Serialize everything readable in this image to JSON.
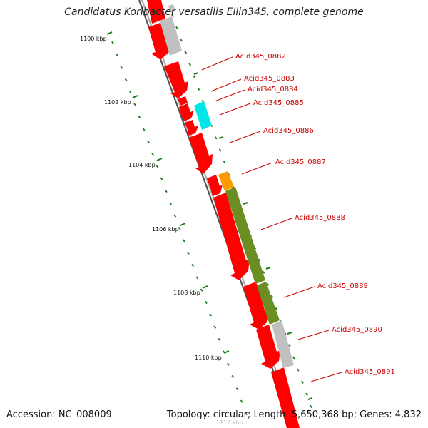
{
  "title": "Candidatus Koribacter versatilis Ellin345, complete genome",
  "footer": {
    "accession": "Accession: NC_008009",
    "summary": "Topology: circular; Length: 5,650,368 bp; Genes: 4,832"
  },
  "colors": {
    "gene_default": "#ff0000",
    "gene_gray": "#c0c0c0",
    "gene_cyan": "#00e5e5",
    "gene_orange": "#ff9900",
    "gene_olive": "#6b8e23",
    "label": "#cc0000",
    "tick": "#1a7a1a",
    "backbone": "#888888"
  },
  "ticks": [
    {
      "label": "1100 kbp"
    },
    {
      "label": "1102 kbp"
    },
    {
      "label": "1104 kbp"
    },
    {
      "label": "1106 kbp"
    },
    {
      "label": "1108 kbp"
    },
    {
      "label": "1110 kbp"
    },
    {
      "label": "1112 kbp"
    }
  ],
  "genes": [
    {
      "label": "Acid345_0882"
    },
    {
      "label": "Acid345_0883"
    },
    {
      "label": "Acid345_0884"
    },
    {
      "label": "Acid345_0885"
    },
    {
      "label": "Acid345_0886"
    },
    {
      "label": "Acid345_0887"
    },
    {
      "label": "Acid345_0888"
    },
    {
      "label": "Acid345_0889"
    },
    {
      "label": "Acid345_0890"
    },
    {
      "label": "Acid345_0891"
    }
  ]
}
